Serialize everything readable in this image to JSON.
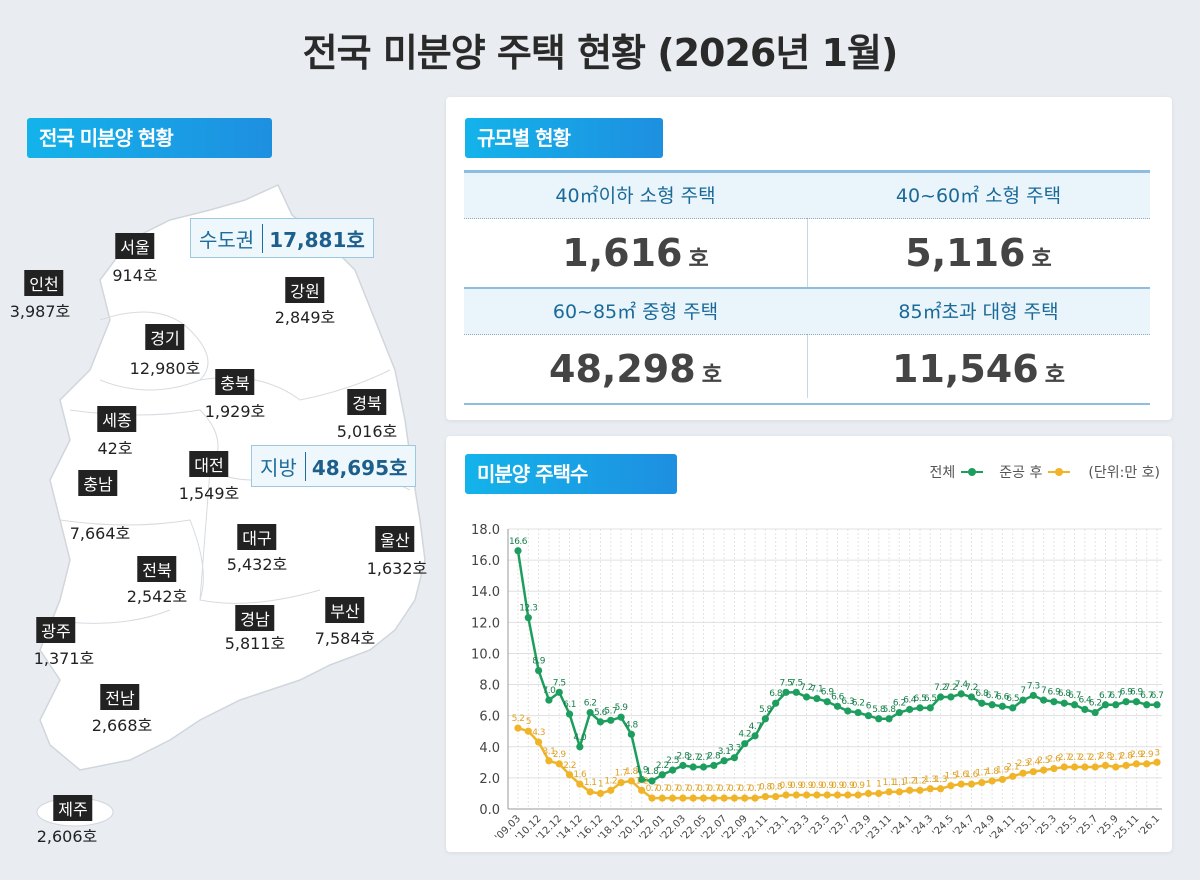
{
  "title": "전국 미분양 주택 현황  (2026년 1월)",
  "map_section": {
    "heading": "전국 미분양 현황",
    "capital_area": {
      "label": "수도권",
      "value": "17,881호"
    },
    "provinces": {
      "label": "지방",
      "value": "48,695호"
    },
    "regions": [
      {
        "name": "서울",
        "value": "914호"
      },
      {
        "name": "인천",
        "value": "3,987호"
      },
      {
        "name": "경기",
        "value": "12,980호"
      },
      {
        "name": "강원",
        "value": "2,849호"
      },
      {
        "name": "충북",
        "value": "1,929호"
      },
      {
        "name": "경북",
        "value": "5,016호"
      },
      {
        "name": "세종",
        "value": "42호"
      },
      {
        "name": "대전",
        "value": "1,549호"
      },
      {
        "name": "충남",
        "value": "7,664호"
      },
      {
        "name": "대구",
        "value": "5,432호"
      },
      {
        "name": "울산",
        "value": "1,632호"
      },
      {
        "name": "전북",
        "value": "2,542호"
      },
      {
        "name": "경남",
        "value": "5,811호"
      },
      {
        "name": "부산",
        "value": "7,584호"
      },
      {
        "name": "광주",
        "value": "1,371호"
      },
      {
        "name": "전남",
        "value": "2,668호"
      },
      {
        "name": "제주",
        "value": "2,606호"
      }
    ]
  },
  "size_section": {
    "heading": "규모별 현황",
    "unit": "호",
    "cells": [
      {
        "label": "40㎡이하 소형 주택",
        "value": "1,616"
      },
      {
        "label": "40~60㎡ 소형 주택",
        "value": "5,116"
      },
      {
        "label": "60~85㎡ 중형 주택",
        "value": "48,298"
      },
      {
        "label": "85㎡초과 대형 주택",
        "value": "11,546"
      }
    ]
  },
  "chart_section": {
    "heading": "미분양 주택수",
    "unit_note": "(단위:만 호)"
  },
  "chart_data": {
    "type": "line",
    "ylim": [
      0,
      18
    ],
    "yticks": [
      "0.0",
      "2.0",
      "4.0",
      "6.0",
      "8.0",
      "10.0",
      "12.0",
      "14.0",
      "16.0",
      "18.0"
    ],
    "grid": true,
    "legend": "top-right",
    "xtick_labels": [
      "'09.03",
      "'10.12",
      "'12.12",
      "'14.12",
      "'16.12",
      "'18.12",
      "'20.12",
      "'22.01",
      "'22.03",
      "'22.05",
      "'22.07",
      "'22.09",
      "'22.11",
      "'23.1",
      "'23.3",
      "'23.5",
      "'23.7",
      "'23.9",
      "'23.11",
      "'24.1",
      "'24.3",
      "'24.5",
      "'24.7",
      "'24.9",
      "'24.11",
      "'25.1",
      "'25.3",
      "'25.5",
      "'25.7",
      "'25.9",
      "'25.11",
      "'26.1"
    ],
    "series": [
      {
        "name": "전체",
        "color": "#1e9e5e",
        "values": [
          16.6,
          12.3,
          8.9,
          7.0,
          7.5,
          6.1,
          4.0,
          6.2,
          5.6,
          5.7,
          5.9,
          4.8,
          1.9,
          1.8,
          2.2,
          2.5,
          2.8,
          2.7,
          2.7,
          2.8,
          3.1,
          3.3,
          4.2,
          4.7,
          5.8,
          6.8,
          7.5,
          7.5,
          7.2,
          7.1,
          6.9,
          6.6,
          6.3,
          6.2,
          6.0,
          5.8,
          5.8,
          6.2,
          6.4,
          6.5,
          6.5,
          7.2,
          7.2,
          7.4,
          7.2,
          6.8,
          6.7,
          6.6,
          6.5,
          7,
          7.3,
          7,
          6.9,
          6.8,
          6.7,
          6.4,
          6.2,
          6.7,
          6.7,
          6.9,
          6.9,
          6.7,
          6.7
        ]
      },
      {
        "name": "준공 후",
        "color": "#f0b429",
        "values": [
          5.2,
          5.0,
          4.3,
          3.1,
          2.9,
          2.2,
          1.6,
          1.1,
          1.0,
          1.2,
          1.7,
          1.8,
          1.2,
          0.7,
          0.7,
          0.7,
          0.7,
          0.7,
          0.7,
          0.7,
          0.7,
          0.7,
          0.7,
          0.7,
          0.8,
          0.8,
          0.9,
          0.9,
          0.9,
          0.9,
          0.9,
          0.9,
          0.9,
          0.9,
          1,
          1,
          1.1,
          1.1,
          1.2,
          1.2,
          1.3,
          1.3,
          1.5,
          1.6,
          1.6,
          1.7,
          1.8,
          1.9,
          2.1,
          2.3,
          2.4,
          2.5,
          2.6,
          2.7,
          2.7,
          2.7,
          2.7,
          2.8,
          2.7,
          2.8,
          2.9,
          2.9,
          3
        ]
      }
    ]
  }
}
